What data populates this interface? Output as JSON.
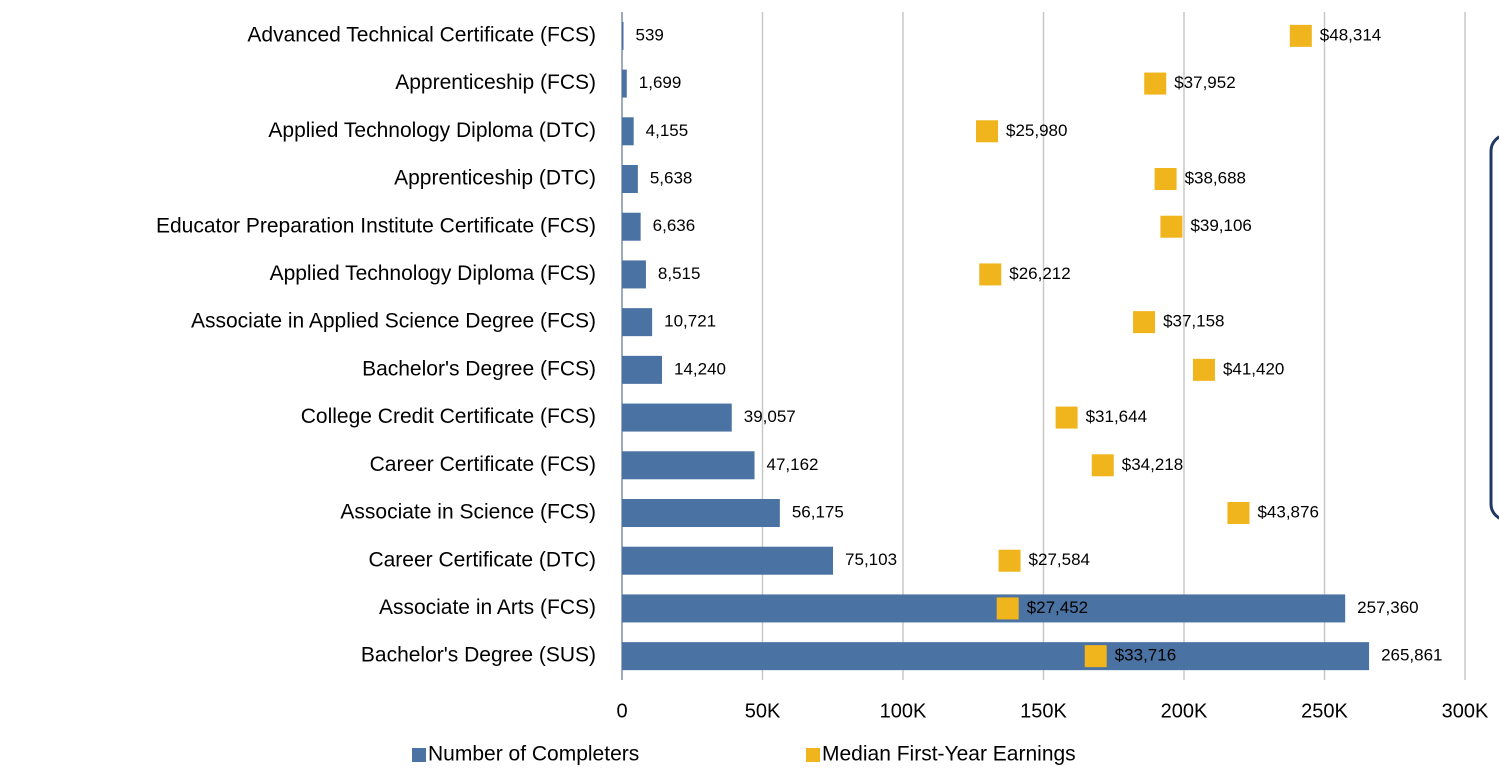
{
  "chart_data": {
    "type": "bar",
    "orientation": "horizontal",
    "categories": [
      "Advanced Technical Certificate (FCS)",
      "Apprenticeship (FCS)",
      "Applied Technology Diploma (DTC)",
      "Apprenticeship (DTC)",
      "Educator Preparation Institute Certificate (FCS)",
      "Applied Technology Diploma (FCS)",
      "Associate in Applied Science Degree (FCS)",
      "Bachelor's Degree (FCS)",
      "College Credit Certificate (FCS)",
      "Career Certificate (FCS)",
      "Associate in Science (FCS)",
      "Career Certificate (DTC)",
      "Associate in Arts (FCS)",
      "Bachelor's Degree (SUS)"
    ],
    "series": [
      {
        "name": "Number of Completers",
        "type": "bar",
        "color": "#4a72a2",
        "values": [
          539,
          1699,
          4155,
          5638,
          6636,
          8515,
          10721,
          14240,
          39057,
          47162,
          56175,
          75103,
          257360,
          265861
        ],
        "value_labels": [
          "539",
          "1,699",
          "4,155",
          "5,638",
          "6,636",
          "8,515",
          "10,721",
          "14,240",
          "39,057",
          "47,162",
          "56,175",
          "75,103",
          "257,360",
          "265,861"
        ]
      },
      {
        "name": "Median First-Year Earnings",
        "type": "scatter",
        "axis": "x2",
        "color": "#f0b41c",
        "values": [
          48314,
          37952,
          25980,
          38688,
          39106,
          26212,
          37158,
          41420,
          31644,
          34218,
          43876,
          27584,
          27452,
          33716
        ],
        "value_labels": [
          "$48,314",
          "$37,952",
          "$25,980",
          "$38,688",
          "$39,106",
          "$26,212",
          "$37,158",
          "$41,420",
          "$31,644",
          "$34,218",
          "$43,876",
          "$27,584",
          "$27,452",
          "$33,716"
        ]
      }
    ],
    "xlim": [
      0,
      300000
    ],
    "xticks": [
      0,
      {
        "value": 50000,
        "label": "50K"
      },
      {
        "value": 100000,
        "label": "100K"
      },
      {
        "value": 150000,
        "label": "150K"
      },
      {
        "value": 200000,
        "label": "200K"
      },
      {
        "value": 250000,
        "label": "250K"
      },
      {
        "value": 300000,
        "label": "300K"
      }
    ],
    "x2lim": [
      0,
      60000
    ],
    "grid": true,
    "legend": "bottom"
  }
}
